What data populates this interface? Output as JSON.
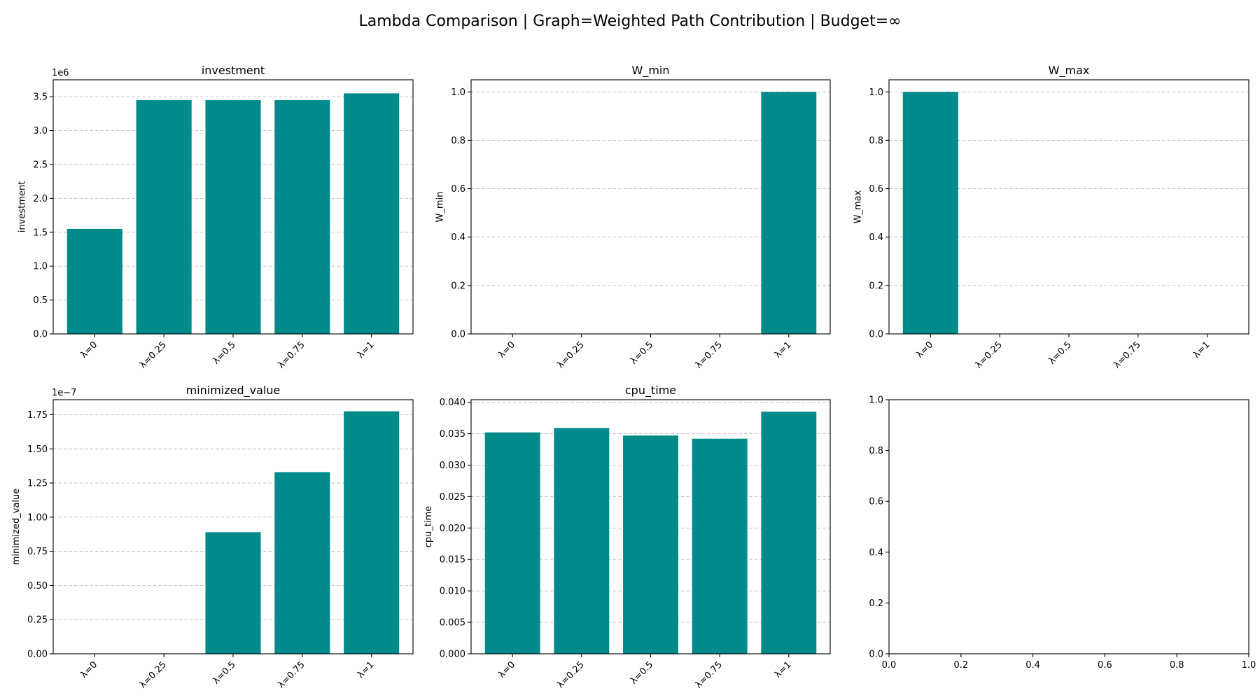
{
  "figure": {
    "title": "Lambda Comparison | Graph=Weighted Path Contribution | Budget=∞",
    "bar_color": "#008b8a"
  },
  "chart_data": [
    {
      "type": "bar",
      "title": "investment",
      "xlabel": "",
      "ylabel": "investment",
      "categories": [
        "λ=0",
        "λ=0.25",
        "λ=0.5",
        "λ=0.75",
        "λ=1"
      ],
      "values": [
        1550000,
        3450000,
        3450000,
        3450000,
        3550000
      ],
      "ylim": [
        0,
        3750000
      ],
      "yticks": [
        0,
        500000,
        1000000,
        1500000,
        2000000,
        2500000,
        3000000,
        3500000
      ],
      "ytick_labels": [
        "0.0",
        "0.5",
        "1.0",
        "1.5",
        "2.0",
        "2.5",
        "3.0",
        "3.5"
      ],
      "offset_label": "1e6",
      "grid": "y dashed"
    },
    {
      "type": "bar",
      "title": "W_min",
      "xlabel": "",
      "ylabel": "W_min",
      "categories": [
        "λ=0",
        "λ=0.25",
        "λ=0.5",
        "λ=0.75",
        "λ=1"
      ],
      "values": [
        0,
        0,
        0,
        0,
        1.0
      ],
      "ylim": [
        0,
        1.05
      ],
      "yticks": [
        0,
        0.2,
        0.4,
        0.6,
        0.8,
        1.0
      ],
      "ytick_labels": [
        "0.0",
        "0.2",
        "0.4",
        "0.6",
        "0.8",
        "1.0"
      ],
      "offset_label": "",
      "grid": "y dashed"
    },
    {
      "type": "bar",
      "title": "W_max",
      "xlabel": "",
      "ylabel": "W_max",
      "categories": [
        "λ=0",
        "λ=0.25",
        "λ=0.5",
        "λ=0.75",
        "λ=1"
      ],
      "values": [
        1.0,
        0,
        0,
        0,
        0
      ],
      "ylim": [
        0,
        1.05
      ],
      "yticks": [
        0,
        0.2,
        0.4,
        0.6,
        0.8,
        1.0
      ],
      "ytick_labels": [
        "0.0",
        "0.2",
        "0.4",
        "0.6",
        "0.8",
        "1.0"
      ],
      "offset_label": "",
      "grid": "y dashed"
    },
    {
      "type": "bar",
      "title": "minimized_value",
      "xlabel": "",
      "ylabel": "minimized_value",
      "categories": [
        "λ=0",
        "λ=0.25",
        "λ=0.5",
        "λ=0.75",
        "λ=1"
      ],
      "values": [
        0,
        0,
        8.9e-08,
        1.33e-07,
        1.775e-07
      ],
      "ylim": [
        0,
        1.86e-07
      ],
      "yticks": [
        0,
        2.5e-08,
        5e-08,
        7.5e-08,
        1e-07,
        1.25e-07,
        1.5e-07,
        1.75e-07
      ],
      "ytick_labels": [
        "0.00",
        "0.25",
        "0.50",
        "0.75",
        "1.00",
        "1.25",
        "1.50",
        "1.75"
      ],
      "offset_label": "1e−7",
      "grid": "y dashed"
    },
    {
      "type": "bar",
      "title": "cpu_time",
      "xlabel": "",
      "ylabel": "cpu_time",
      "categories": [
        "λ=0",
        "λ=0.25",
        "λ=0.5",
        "λ=0.75",
        "λ=1"
      ],
      "values": [
        0.0352,
        0.0359,
        0.0347,
        0.0342,
        0.0385
      ],
      "ylim": [
        0,
        0.0404
      ],
      "yticks": [
        0,
        0.005,
        0.01,
        0.015,
        0.02,
        0.025,
        0.03,
        0.035,
        0.04
      ],
      "ytick_labels": [
        "0.000",
        "0.005",
        "0.010",
        "0.015",
        "0.020",
        "0.025",
        "0.030",
        "0.035",
        "0.040"
      ],
      "offset_label": "",
      "grid": "y dashed"
    },
    {
      "type": "bar",
      "title": "",
      "xlabel": "",
      "ylabel": "",
      "categories": [],
      "values": [],
      "xlim": [
        0,
        1
      ],
      "ylim": [
        0,
        1
      ],
      "xticks": [
        0,
        0.2,
        0.4,
        0.6,
        0.8,
        1.0
      ],
      "xtick_labels": [
        "0.0",
        "0.2",
        "0.4",
        "0.6",
        "0.8",
        "1.0"
      ],
      "yticks": [
        0,
        0.2,
        0.4,
        0.6,
        0.8,
        1.0
      ],
      "ytick_labels": [
        "0.0",
        "0.2",
        "0.4",
        "0.6",
        "0.8",
        "1.0"
      ],
      "offset_label": "",
      "grid": "none"
    }
  ]
}
